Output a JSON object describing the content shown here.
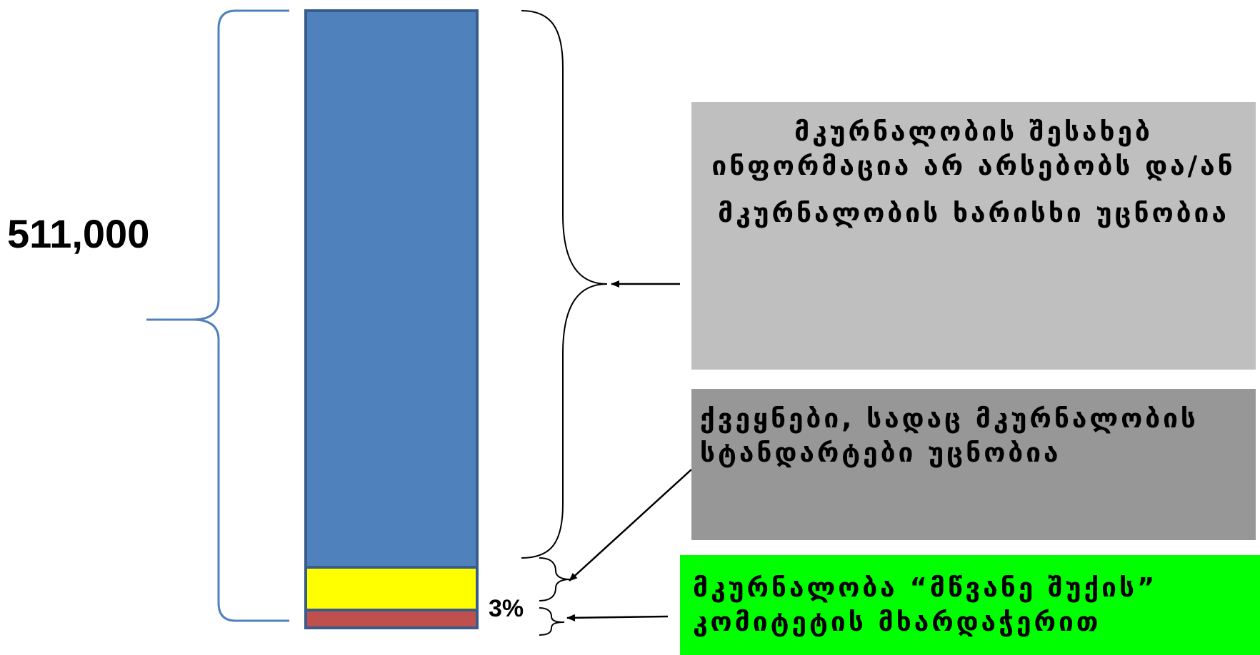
{
  "total_label": "511,000",
  "percent_label": "3%",
  "boxes": {
    "unknown": {
      "line1": "მკურნალობის შესახებ ინფორმაცია არ არსებობს და/ან",
      "line2": "მკურნალობის ხარისხი უცნობია",
      "color": "#bfbfbf"
    },
    "countries": {
      "text": "ქვეყნები, სადაც მკურნალობის სტანდარტები უცნობია",
      "color": "#979797"
    },
    "green": {
      "text": "მკურნალობა “მწვანე შუქის” კომიტეტის მხარდაჭერით",
      "color": "#00ff00"
    }
  },
  "bar_segments": [
    {
      "name": "blue",
      "color": "#4f81bd"
    },
    {
      "name": "yellow",
      "color": "#ffff00"
    },
    {
      "name": "red",
      "color": "#c0504d"
    }
  ]
}
